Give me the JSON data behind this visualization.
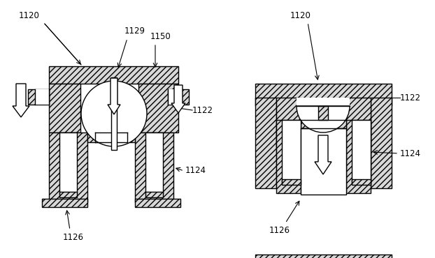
{
  "bg_color": "#ffffff",
  "line_color": "#000000",
  "hatch_fc": "#d8d8d8",
  "hatch_pattern": "////",
  "fig_width": 6.22,
  "fig_height": 3.7,
  "dpi": 100,
  "labels": {
    "left_1120": "1120",
    "left_1129": "1129",
    "left_1150": "1150",
    "left_1122": "1122",
    "left_1124": "1124",
    "left_1126": "1126",
    "right_1120": "1120",
    "right_1122": "1122",
    "right_1124": "1124",
    "right_1126": "1126"
  }
}
